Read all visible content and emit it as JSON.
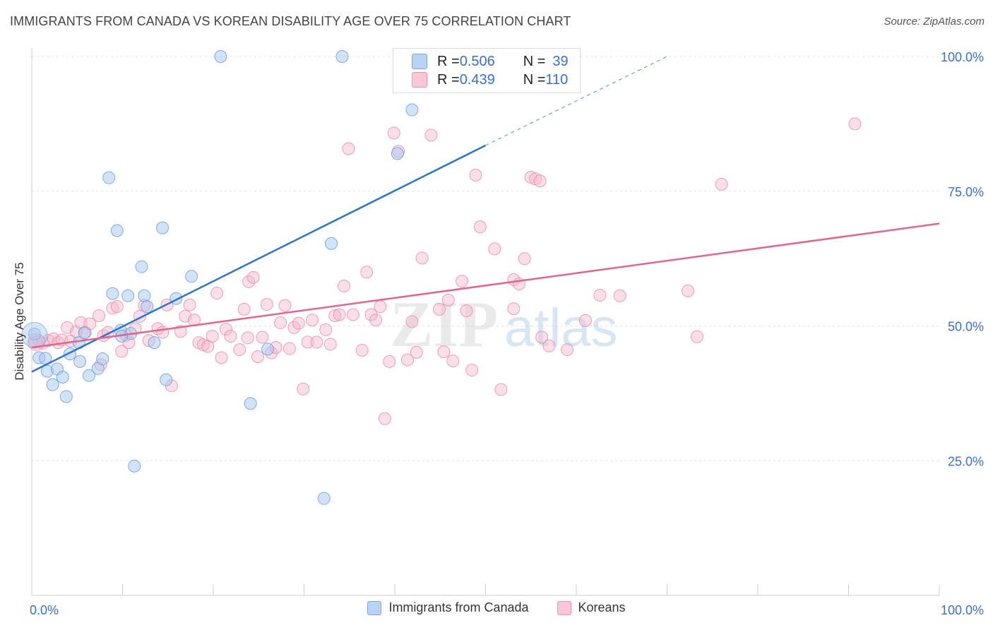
{
  "title": "IMMIGRANTS FROM CANADA VS KOREAN DISABILITY AGE OVER 75 CORRELATION CHART",
  "source": "Source: ZipAtlas.com",
  "watermark": {
    "left": "ZIP",
    "right": "atlas"
  },
  "colors": {
    "blue_fill": "#a8c8f0",
    "blue_stroke": "#6a9fdc",
    "blue_line": "#2f74d0",
    "pink_fill": "#f4b8cc",
    "pink_stroke": "#e889a8",
    "pink_line": "#e0668f",
    "axis_text": "#3b6fce"
  },
  "stats": {
    "blue": {
      "r_label": "R = ",
      "r_value": "0.506",
      "n_label": "N = ",
      "n_value": "39"
    },
    "pink": {
      "r_label": "R = ",
      "r_value": "0.439",
      "n_label": "N = ",
      "n_value": "110"
    }
  },
  "legend": {
    "blue": "Immigrants from Canada",
    "pink": "Koreans"
  },
  "chart_data": {
    "type": "scatter",
    "ylabel": "Disability Age Over 75",
    "xlim": [
      0,
      100
    ],
    "ylim": [
      0,
      100
    ],
    "x_tick_labels": [
      "0.0%",
      "100.0%"
    ],
    "y_tick_labels": [
      {
        "value": 25,
        "label": "25.0%"
      },
      {
        "value": 50,
        "label": "50.0%"
      },
      {
        "value": 75,
        "label": "75.0%"
      },
      {
        "value": 100,
        "label": "100.0%"
      }
    ],
    "series": [
      {
        "name": "Immigrants from Canada",
        "trend": {
          "x0": 0,
          "y0": 41.5,
          "x1": 50,
          "y1": 83.5,
          "dash_to_x": 70,
          "dash_to_y": 100
        },
        "points": [
          [
            0.3,
            48.5
          ],
          [
            0.8,
            44.1
          ],
          [
            1.5,
            44.0
          ],
          [
            1.7,
            41.6
          ],
          [
            2.3,
            39.1
          ],
          [
            2.8,
            42.0
          ],
          [
            3.4,
            40.5
          ],
          [
            3.8,
            36.9
          ],
          [
            4.2,
            44.8
          ],
          [
            5.2,
            46.9
          ],
          [
            5.3,
            43.4
          ],
          [
            5.8,
            48.7
          ],
          [
            6.3,
            40.8
          ],
          [
            7.3,
            42.1
          ],
          [
            7.8,
            43.9
          ],
          [
            8.5,
            77.5
          ],
          [
            8.9,
            56.0
          ],
          [
            9.4,
            67.7
          ],
          [
            9.8,
            49.2
          ],
          [
            10.6,
            55.6
          ],
          [
            10.9,
            48.6
          ],
          [
            11.3,
            24.0
          ],
          [
            12.1,
            61.0
          ],
          [
            12.4,
            55.6
          ],
          [
            12.7,
            53.6
          ],
          [
            13.5,
            46.9
          ],
          [
            14.4,
            68.2
          ],
          [
            14.8,
            40.0
          ],
          [
            15.9,
            55.1
          ],
          [
            17.6,
            59.2
          ],
          [
            20.8,
            100.0
          ],
          [
            24.1,
            35.6
          ],
          [
            26.0,
            45.7
          ],
          [
            32.2,
            18.0
          ],
          [
            33.0,
            65.3
          ],
          [
            34.2,
            100.0
          ],
          [
            40.3,
            82.0
          ],
          [
            41.9,
            90.1
          ],
          [
            9.9,
            48.1
          ]
        ]
      },
      {
        "name": "Koreans",
        "trend": {
          "x0": 0,
          "y0": 46.0,
          "x1": 100,
          "y1": 69.0
        },
        "points": [
          [
            0.3,
            47.0
          ],
          [
            0.8,
            47.2
          ],
          [
            1.2,
            46.8
          ],
          [
            1.8,
            47.3
          ],
          [
            2.4,
            47.6
          ],
          [
            2.9,
            46.9
          ],
          [
            3.3,
            47.4
          ],
          [
            3.9,
            49.7
          ],
          [
            4.3,
            47.2
          ],
          [
            4.9,
            48.9
          ],
          [
            5.4,
            50.6
          ],
          [
            5.9,
            48.8
          ],
          [
            6.4,
            50.4
          ],
          [
            7.4,
            51.9
          ],
          [
            7.9,
            48.2
          ],
          [
            8.4,
            48.8
          ],
          [
            8.9,
            53.3
          ],
          [
            9.4,
            53.6
          ],
          [
            9.9,
            45.3
          ],
          [
            10.4,
            48.3
          ],
          [
            11.4,
            49.5
          ],
          [
            11.9,
            51.8
          ],
          [
            12.4,
            53.8
          ],
          [
            12.9,
            47.3
          ],
          [
            13.9,
            49.5
          ],
          [
            14.4,
            48.8
          ],
          [
            14.9,
            53.9
          ],
          [
            15.4,
            38.9
          ],
          [
            16.4,
            49.0
          ],
          [
            16.9,
            51.8
          ],
          [
            17.4,
            53.9
          ],
          [
            17.9,
            51.1
          ],
          [
            18.4,
            46.9
          ],
          [
            18.9,
            46.5
          ],
          [
            19.4,
            46.2
          ],
          [
            19.9,
            48.1
          ],
          [
            20.4,
            56.1
          ],
          [
            20.9,
            44.1
          ],
          [
            21.4,
            49.4
          ],
          [
            21.9,
            48.1
          ],
          [
            22.9,
            45.6
          ],
          [
            23.4,
            53.1
          ],
          [
            23.9,
            58.2
          ],
          [
            24.4,
            59.0
          ],
          [
            24.9,
            44.3
          ],
          [
            25.4,
            47.9
          ],
          [
            25.9,
            54.0
          ],
          [
            26.4,
            45.0
          ],
          [
            26.9,
            46.0
          ],
          [
            27.4,
            50.6
          ],
          [
            27.9,
            53.8
          ],
          [
            28.4,
            45.8
          ],
          [
            28.9,
            49.7
          ],
          [
            29.4,
            50.5
          ],
          [
            29.9,
            38.3
          ],
          [
            30.4,
            47.0
          ],
          [
            30.9,
            51.1
          ],
          [
            31.4,
            47.0
          ],
          [
            32.4,
            49.3
          ],
          [
            32.9,
            46.6
          ],
          [
            33.4,
            51.9
          ],
          [
            33.9,
            52.1
          ],
          [
            34.4,
            57.4
          ],
          [
            34.9,
            82.9
          ],
          [
            35.4,
            52.1
          ],
          [
            36.4,
            45.5
          ],
          [
            36.9,
            60.0
          ],
          [
            37.4,
            52.1
          ],
          [
            37.9,
            51.1
          ],
          [
            38.4,
            53.6
          ],
          [
            38.9,
            32.8
          ],
          [
            39.4,
            43.4
          ],
          [
            39.9,
            85.8
          ],
          [
            40.4,
            82.4
          ],
          [
            41.4,
            43.7
          ],
          [
            41.9,
            50.8
          ],
          [
            42.4,
            45.1
          ],
          [
            43.0,
            62.6
          ],
          [
            44.0,
            85.4
          ],
          [
            44.9,
            53.1
          ],
          [
            45.4,
            45.2
          ],
          [
            45.9,
            54.8
          ],
          [
            46.4,
            43.5
          ],
          [
            47.4,
            58.3
          ],
          [
            47.9,
            52.8
          ],
          [
            48.5,
            41.8
          ],
          [
            48.9,
            78.0
          ],
          [
            49.4,
            68.4
          ],
          [
            51.0,
            64.3
          ],
          [
            51.7,
            38.2
          ],
          [
            53.1,
            58.6
          ],
          [
            53.7,
            57.8
          ],
          [
            54.3,
            62.5
          ],
          [
            55.0,
            77.6
          ],
          [
            55.5,
            77.3
          ],
          [
            56.0,
            76.9
          ],
          [
            53.1,
            53.2
          ],
          [
            56.2,
            47.9
          ],
          [
            57.0,
            46.3
          ],
          [
            59.0,
            45.6
          ],
          [
            62.6,
            55.7
          ],
          [
            64.8,
            55.6
          ],
          [
            72.3,
            56.5
          ],
          [
            73.3,
            48.0
          ],
          [
            76.0,
            76.3
          ],
          [
            90.7,
            87.5
          ],
          [
            61.0,
            51.0
          ],
          [
            23.8,
            47.8
          ],
          [
            10.7,
            46.9
          ],
          [
            7.6,
            42.8
          ]
        ]
      }
    ]
  }
}
